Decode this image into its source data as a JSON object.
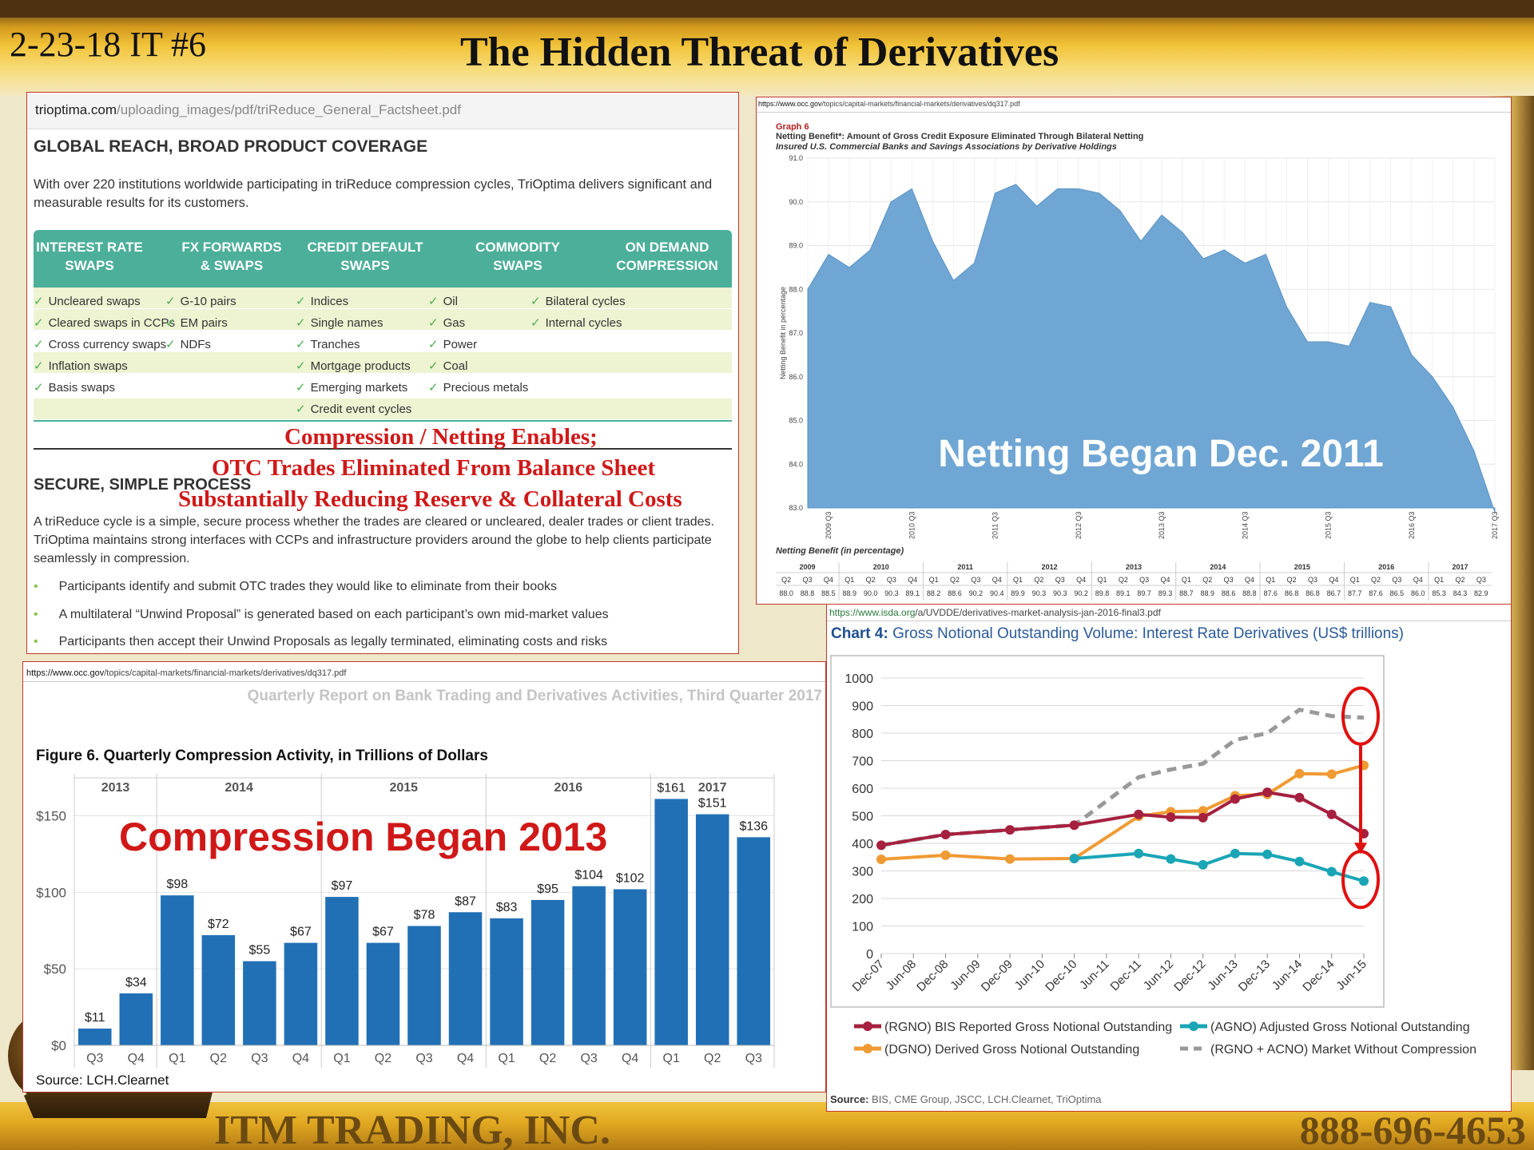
{
  "slide": {
    "id": "2-23-18 IT #6",
    "title": "The Hidden Threat of Derivatives",
    "footer_company": "ITM TRADING, INC.",
    "footer_phone": "888-696-4653",
    "colors": {
      "accent_gold": "#e8b72c",
      "header_brown": "#4e3111",
      "red": "#d01818"
    }
  },
  "factsheet": {
    "url_domain": "trioptima.com",
    "url_path": "/uploading_images/pdf/triReduce_General_Factsheet.pdf",
    "heading": "GLOBAL REACH, BROAD PRODUCT COVERAGE",
    "intro": "With over 220 institutions worldwide participating in triReduce compression cycles, TriOptima delivers significant and measurable results for its customers.",
    "columns": [
      {
        "title": "INTEREST RATE SWAPS",
        "items": [
          "Uncleared swaps",
          "Cleared swaps in CCPs",
          "Cross currency swaps",
          "Inflation swaps",
          "Basis swaps"
        ]
      },
      {
        "title": "FX FORWARDS & SWAPS",
        "items": [
          "G-10 pairs",
          "EM pairs",
          "NDFs"
        ]
      },
      {
        "title": "CREDIT DEFAULT SWAPS",
        "items": [
          "Indices",
          "Single names",
          "Tranches",
          "Mortgage products",
          "Emerging markets",
          "Credit event cycles"
        ]
      },
      {
        "title": "COMMODITY SWAPS",
        "items": [
          "Oil",
          "Gas",
          "Power",
          "Coal",
          "Precious metals"
        ]
      },
      {
        "title": "ON DEMAND COMPRESSION",
        "items": [
          "Bilateral cycles",
          "Internal cycles"
        ]
      }
    ],
    "section2_heading": "SECURE, SIMPLE PROCESS",
    "section2_text": "A triReduce cycle is a simple, secure process whether the trades are cleared or uncleared, dealer trades or client trades. TriOptima maintains strong interfaces with CCPs and infrastructure providers around the globe to help clients participate seamlessly in compression.",
    "bullets": [
      "Participants identify and submit OTC trades they would like to eliminate from their books",
      "A multilateral “Unwind Proposal” is generated based on each participant’s own mid-market values",
      "Participants then accept their Unwind Proposals as legally terminated, eliminating costs and risks"
    ],
    "overlay_lines": [
      "Compression / Netting Enables;",
      "OTC Trades Eliminated From Balance Sheet",
      "Substantially Reducing Reserve & Collateral Costs"
    ]
  },
  "graph6": {
    "url_domain": "https://www.occ.gov",
    "url_path": "/topics/capital-markets/financial-markets/derivatives/dq317.pdf",
    "label": "Graph 6",
    "title": "Netting Benefit*: Amount of Gross Credit Exposure Eliminated Through Bilateral Netting",
    "subtitle": "Insured U.S. Commercial Banks and Savings Associations by Derivative Holdings",
    "overlay": "Netting Began Dec. 2011",
    "table_title": "Netting Benefit (in percentage)"
  },
  "figure6": {
    "url_domain": "https://www.occ.gov",
    "url_path": "/topics/capital-markets/financial-markets/derivatives/dq317.pdf",
    "report_title": "Quarterly Report on Bank Trading and Derivatives Activities, Third Quarter 2017",
    "title": "Figure 6. Quarterly Compression Activity, in Trillions of Dollars",
    "overlay": "Compression Began 2013",
    "source": "Source: LCH.Clearnet"
  },
  "chart4": {
    "url_domain": "https://www.isda.org",
    "url_path": "/a/UVDDE/derivatives-market-analysis-jan-2016-final3.pdf",
    "title_prefix": "Chart 4:",
    "title_rest": " Gross Notional Outstanding Volume: Interest Rate Derivatives (US$ trillions)",
    "source_label": "Source:",
    "source_text": " BIS, CME Group, JSCC, LCH.Clearnet, TriOptima"
  },
  "chart_data": [
    {
      "id": "graph6",
      "type": "area",
      "ylabel": "Netting Benefit in percentage",
      "ylim": [
        83,
        91
      ],
      "yticks": [
        83.0,
        84.0,
        85.0,
        86.0,
        87.0,
        88.0,
        89.0,
        90.0,
        91.0
      ],
      "xticks": [
        "2009 Q3",
        "2010 Q3",
        "2011 Q3",
        "2012 Q3",
        "2013 Q3",
        "2014 Q3",
        "2015 Q3",
        "2016 Q3",
        "2017 Q3"
      ],
      "color": "#6fa6d4",
      "grid": true,
      "years": [
        "2009",
        "2010",
        "2011",
        "2012",
        "2013",
        "2014",
        "2015",
        "2016",
        "2017"
      ],
      "year_quarters": [
        3,
        4,
        4,
        4,
        4,
        4,
        4,
        4,
        3
      ],
      "quarters": [
        "Q2",
        "Q3",
        "Q4",
        "Q1",
        "Q2",
        "Q3",
        "Q4",
        "Q1",
        "Q2",
        "Q3",
        "Q4",
        "Q1",
        "Q2",
        "Q3",
        "Q4",
        "Q1",
        "Q2",
        "Q3",
        "Q4",
        "Q1",
        "Q2",
        "Q3",
        "Q4",
        "Q1",
        "Q2",
        "Q3",
        "Q4",
        "Q1",
        "Q2",
        "Q3",
        "Q4",
        "Q1",
        "Q2",
        "Q3"
      ],
      "values": [
        88.0,
        88.8,
        88.5,
        88.9,
        90.0,
        90.3,
        89.1,
        88.2,
        88.6,
        90.2,
        90.4,
        89.9,
        90.3,
        90.3,
        90.2,
        89.8,
        89.1,
        89.7,
        89.3,
        88.7,
        88.9,
        88.6,
        88.8,
        87.6,
        86.8,
        86.8,
        86.7,
        87.7,
        87.6,
        86.5,
        86.0,
        85.3,
        84.3,
        82.9
      ]
    },
    {
      "id": "figure6",
      "type": "bar",
      "years": [
        {
          "label": "2013",
          "count": 2
        },
        {
          "label": "2014",
          "count": 4
        },
        {
          "label": "2015",
          "count": 4
        },
        {
          "label": "2016",
          "count": 4
        },
        {
          "label": "2017",
          "count": 3
        }
      ],
      "categories": [
        "Q3",
        "Q4",
        "Q1",
        "Q2",
        "Q3",
        "Q4",
        "Q1",
        "Q2",
        "Q3",
        "Q4",
        "Q1",
        "Q2",
        "Q3",
        "Q4",
        "Q1",
        "Q2",
        "Q3"
      ],
      "values": [
        11,
        34,
        98,
        72,
        55,
        67,
        97,
        67,
        78,
        87,
        83,
        95,
        104,
        102,
        161,
        151,
        136
      ],
      "labels": [
        "$11",
        "$34",
        "$98",
        "$72",
        "$55",
        "$67",
        "$97",
        "$67",
        "$78",
        "$87",
        "$83",
        "$95",
        "$104",
        "$102",
        "$161",
        "$151",
        "$136"
      ],
      "ylim": [
        0,
        180
      ],
      "yticks": [
        0,
        50,
        100,
        150
      ],
      "ytick_labels": [
        "$0",
        "$50",
        "$100",
        "$150"
      ],
      "color": "#2170b5"
    },
    {
      "id": "chart4",
      "type": "line",
      "x": [
        "Dec-07",
        "Jun-08",
        "Dec-08",
        "Jun-09",
        "Dec-09",
        "Jun-10",
        "Dec-10",
        "Jun-11",
        "Dec-11",
        "Jun-12",
        "Dec-12",
        "Jun-13",
        "Dec-13",
        "Jun-14",
        "Dec-14",
        "Jun-15"
      ],
      "ylim": [
        0,
        1000
      ],
      "yticks": [
        0,
        100,
        200,
        300,
        400,
        500,
        600,
        700,
        800,
        900,
        1000
      ],
      "grid": true,
      "series": [
        {
          "name": "(RGNO) BIS Reported Gross Notional Outstanding",
          "color": "#a6203f",
          "values": [
            393,
            null,
            432,
            null,
            449,
            null,
            466,
            null,
            505,
            495,
            493,
            561,
            585,
            566,
            505,
            435
          ]
        },
        {
          "name": "(AGNO) Adjusted Gross Notional Outstanding",
          "color": "#1aa5b5",
          "values": [
            null,
            null,
            null,
            null,
            null,
            null,
            345,
            null,
            363,
            343,
            322,
            363,
            360,
            334,
            297,
            263
          ]
        },
        {
          "name": "(DGNO) Derived Gross Notional Outstanding",
          "color": "#f09a33",
          "values": [
            342,
            null,
            357,
            null,
            343,
            null,
            345,
            null,
            498,
            515,
            518,
            573,
            578,
            653,
            651,
            683
          ]
        },
        {
          "name": "(RGNO + ACNO) Market Without Compression",
          "color": "#999999",
          "values": [
            393,
            null,
            432,
            null,
            449,
            null,
            466,
            null,
            640,
            668,
            689,
            775,
            800,
            885,
            862,
            856
          ]
        }
      ]
    }
  ]
}
